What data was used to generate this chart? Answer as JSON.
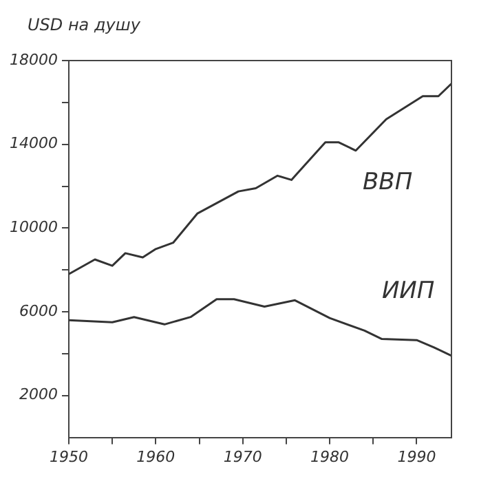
{
  "chart_data": {
    "type": "line",
    "ylabel": "USD на душу",
    "xlim": [
      1950,
      1994
    ],
    "xticks": [
      1950,
      {
        "value": 1955,
        "label": null
      },
      1960,
      {
        "value": 1965,
        "label": null
      },
      1970,
      {
        "value": 1975,
        "label": null
      },
      1980,
      {
        "value": 1985,
        "label": null
      },
      1990
    ],
    "ylim": [
      0,
      18000
    ],
    "yticks": [
      2000,
      {
        "value": 4000,
        "label": null
      },
      6000,
      {
        "value": 8000,
        "label": null
      },
      10000,
      {
        "value": 12000,
        "label": null
      },
      14000,
      {
        "value": 16000,
        "label": null
      },
      18000
    ],
    "grid": false,
    "legend": false,
    "marker": "none",
    "line_style": "solid",
    "series": [
      {
        "name": "ВВП",
        "color": "#333333",
        "x": [
          1950,
          1953,
          1955,
          1956.5,
          1958.5,
          1960,
          1962,
          1964.8,
          1969.5,
          1971.5,
          1974,
          1975.6,
          1979.5,
          1981,
          1983,
          1986.5,
          1990.7,
          1992.5,
          1994
        ],
        "values": [
          7800,
          8500,
          8200,
          8800,
          8600,
          9000,
          9300,
          10700,
          11750,
          11900,
          12500,
          12300,
          14100,
          14100,
          13700,
          15200,
          16300,
          16300,
          16900
        ]
      },
      {
        "name": "ИИП",
        "color": "#333333",
        "x": [
          1950,
          1955,
          1957.5,
          1961,
          1964,
          1967,
          1969,
          1972.5,
          1976,
          1980,
          1984,
          1986,
          1990,
          1992,
          1994
        ],
        "values": [
          5600,
          5500,
          5750,
          5400,
          5750,
          6600,
          6600,
          6250,
          6550,
          5700,
          5100,
          4700,
          4650,
          4300,
          3900
        ]
      }
    ]
  }
}
